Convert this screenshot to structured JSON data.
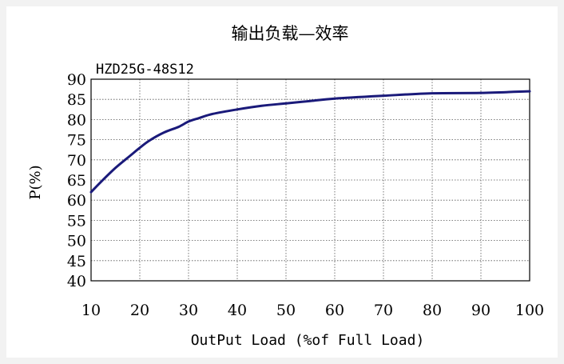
{
  "chart_data": {
    "type": "line",
    "title": "输出负载—效率",
    "subtitle": "HZD25G-48S12",
    "xlabel": "OutPut Load (%of Full Load)",
    "ylabel": "P(%)",
    "xlim": [
      10,
      100
    ],
    "ylim": [
      40,
      90
    ],
    "xticks": [
      10,
      20,
      30,
      40,
      50,
      60,
      70,
      80,
      90,
      100
    ],
    "yticks": [
      40,
      45,
      50,
      55,
      60,
      65,
      70,
      75,
      80,
      85,
      90
    ],
    "grid": true,
    "series": [
      {
        "color": "#1a1a7a",
        "x": [
          10,
          12,
          15,
          18,
          20,
          22,
          25,
          28,
          30,
          32,
          35,
          40,
          45,
          50,
          55,
          60,
          70,
          80,
          90,
          100
        ],
        "y": [
          62,
          64.5,
          68,
          71,
          73,
          74.8,
          76.8,
          78.2,
          79.5,
          80.3,
          81.4,
          82.5,
          83.4,
          84.0,
          84.6,
          85.2,
          85.9,
          86.5,
          86.6,
          87.0
        ]
      }
    ]
  }
}
